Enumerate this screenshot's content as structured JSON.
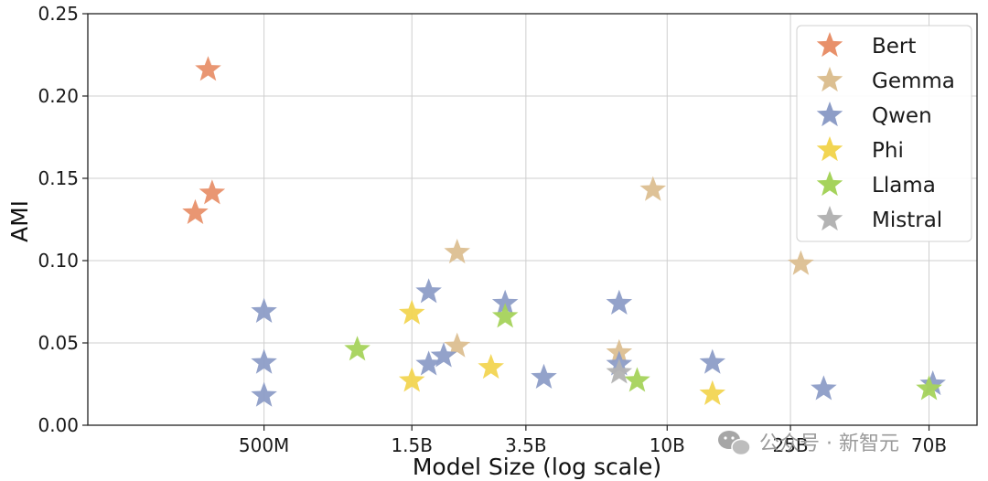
{
  "watermark": {
    "text": "公众号 · 新智元"
  },
  "chart_data": {
    "type": "scatter",
    "title": "",
    "xlabel": "Model Size (log scale)",
    "ylabel": "AMI",
    "x_scale": "log",
    "xticks": [
      {
        "label": "500M",
        "value": 0.5
      },
      {
        "label": "1.5B",
        "value": 1.5
      },
      {
        "label": "3.5B",
        "value": 3.5
      },
      {
        "label": "10B",
        "value": 10
      },
      {
        "label": "25B",
        "value": 25
      },
      {
        "label": "70B",
        "value": 70
      }
    ],
    "yticks": [
      "0.00",
      "0.05",
      "0.10",
      "0.15",
      "0.20",
      "0.25"
    ],
    "xlim": [
      0.135,
      100
    ],
    "ylim": [
      0,
      0.25
    ],
    "grid": true,
    "marker": "star",
    "legend_position": "top-right",
    "series": [
      {
        "name": "Bert",
        "color": "#E8906A",
        "points": [
          [
            0.3,
            0.129
          ],
          [
            0.34,
            0.141
          ],
          [
            0.33,
            0.216
          ]
        ]
      },
      {
        "name": "Gemma",
        "color": "#DCBF91",
        "points": [
          [
            2.1,
            0.105
          ],
          [
            2.1,
            0.048
          ],
          [
            7,
            0.044
          ],
          [
            9,
            0.143
          ],
          [
            27,
            0.098
          ]
        ]
      },
      {
        "name": "Qwen",
        "color": "#8D9DC7",
        "points": [
          [
            0.5,
            0.069
          ],
          [
            0.5,
            0.038
          ],
          [
            0.5,
            0.018
          ],
          [
            1.7,
            0.081
          ],
          [
            1.7,
            0.037
          ],
          [
            1.9,
            0.042
          ],
          [
            3.0,
            0.074
          ],
          [
            4.0,
            0.029
          ],
          [
            7,
            0.074
          ],
          [
            7,
            0.037
          ],
          [
            14,
            0.038
          ],
          [
            32,
            0.022
          ],
          [
            72,
            0.025
          ]
        ]
      },
      {
        "name": "Phi",
        "color": "#F2D552",
        "points": [
          [
            1.5,
            0.068
          ],
          [
            1.5,
            0.027
          ],
          [
            2.7,
            0.035
          ],
          [
            14,
            0.019
          ]
        ]
      },
      {
        "name": "Llama",
        "color": "#A5D35B",
        "points": [
          [
            1.0,
            0.046
          ],
          [
            3.0,
            0.066
          ],
          [
            8,
            0.027
          ],
          [
            70,
            0.022
          ]
        ]
      },
      {
        "name": "Mistral",
        "color": "#B3B3B3",
        "points": [
          [
            7,
            0.032
          ]
        ]
      }
    ]
  }
}
